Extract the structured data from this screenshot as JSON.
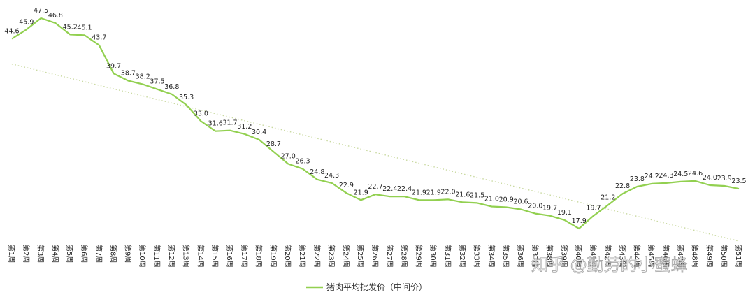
{
  "chart_data": {
    "type": "line",
    "title": "",
    "xlabel": "",
    "ylabel": "",
    "ylim": [
      15,
      50
    ],
    "grid": false,
    "legend": "bottom",
    "categories": [
      "第1周",
      "第2周",
      "第3周",
      "第4周",
      "第5周",
      "第6周",
      "第7周",
      "第8周",
      "第9周",
      "第10周",
      "第11周",
      "第12周",
      "第13周",
      "第14周",
      "第15周",
      "第16周",
      "第17周",
      "第18周",
      "第19周",
      "第20周",
      "第21周",
      "第22周",
      "第23周",
      "第24周",
      "第25周",
      "第26周",
      "第27周",
      "第28周",
      "第29周",
      "第30周",
      "第31周",
      "第32周",
      "第33周",
      "第34周",
      "第35周",
      "第36周",
      "第37周",
      "第38周",
      "第39周",
      "第40周",
      "第41周",
      "第42周",
      "第43周",
      "第44周",
      "第45周",
      "第46周",
      "第47周",
      "第48周",
      "第49周",
      "第50周",
      "第51周"
    ],
    "series": [
      {
        "name": "猪肉平均批发价（中间价）",
        "color": "#92d050",
        "values": [
          44.6,
          45.9,
          47.5,
          46.8,
          45.2,
          45.1,
          43.7,
          39.7,
          38.7,
          38.2,
          37.5,
          36.8,
          35.3,
          33.0,
          31.6,
          31.7,
          31.2,
          30.4,
          28.7,
          27.0,
          26.3,
          24.8,
          24.3,
          22.9,
          21.9,
          22.7,
          22.4,
          22.4,
          21.9,
          21.9,
          22.0,
          21.6,
          21.5,
          21.0,
          20.9,
          20.6,
          20.0,
          19.7,
          19.1,
          17.9,
          19.7,
          21.2,
          22.8,
          23.8,
          24.2,
          24.3,
          24.5,
          24.6,
          24.0,
          23.9,
          23.5
        ]
      }
    ],
    "trendline": {
      "type": "linear",
      "color": "#c9d9a0",
      "style": "dotted"
    },
    "data_labels": true
  },
  "watermark": {
    "text": "知乎 @勤劳的小蜜蜂"
  }
}
